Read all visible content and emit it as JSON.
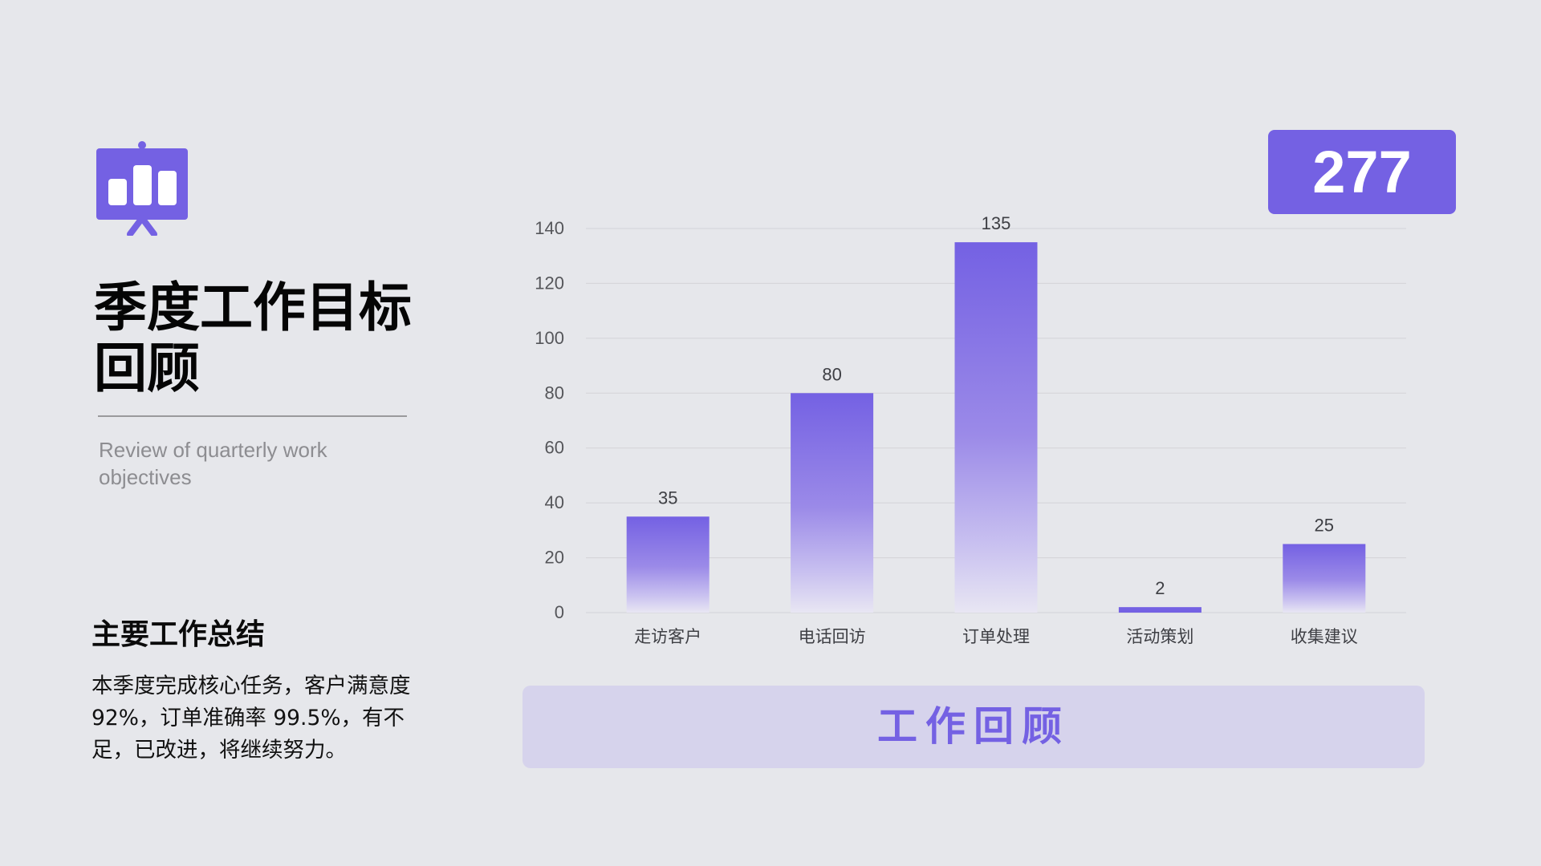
{
  "slide": {
    "title": "季度工作目标回顾",
    "subtitle": "Review of quarterly work objectives",
    "summary_heading": "主要工作总结",
    "summary_text": "本季度完成核心任务，客户满意度 92%，订单准确率 99.5%，有不足，已改进，将继续努力。",
    "total_value": "277",
    "banner_text": "工作回顾",
    "icon": "presentation-icon",
    "accent_color": "#7461e3"
  },
  "chart_data": {
    "type": "bar",
    "categories": [
      "走访客户",
      "电话回访",
      "订单处理",
      "活动策划",
      "收集建议"
    ],
    "values": [
      35,
      80,
      135,
      2,
      25
    ],
    "data_labels": [
      "35",
      "80",
      "135",
      "2",
      "25"
    ],
    "title": "",
    "xlabel": "",
    "ylabel": "",
    "ylim": [
      0,
      140
    ],
    "yticks": [
      0,
      20,
      40,
      60,
      80,
      100,
      120,
      140
    ],
    "grid": true,
    "legend": "none",
    "bar_color": "#7461e3"
  }
}
